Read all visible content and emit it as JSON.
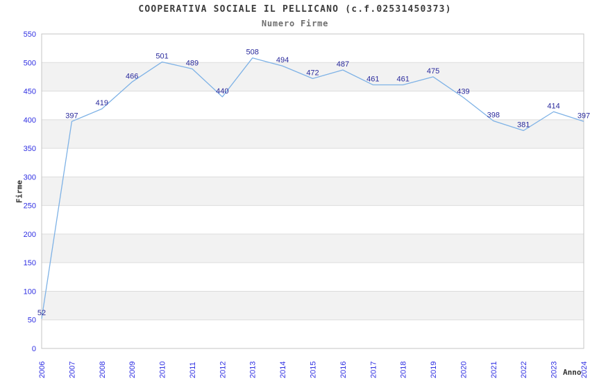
{
  "title": "COOPERATIVA SOCIALE IL PELLICANO (c.f.02531450373)",
  "subtitle": "Numero Firme",
  "chart_data": {
    "type": "line",
    "title": "COOPERATIVA SOCIALE IL PELLICANO (c.f.02531450373)",
    "subtitle": "Numero Firme",
    "xlabel": "Anno",
    "ylabel": "Firme",
    "x": [
      2006,
      2007,
      2008,
      2009,
      2010,
      2011,
      2012,
      2013,
      2014,
      2015,
      2016,
      2017,
      2018,
      2019,
      2020,
      2021,
      2022,
      2023,
      2024
    ],
    "series": [
      {
        "name": "Numero Firme",
        "values": [
          52,
          397,
          419,
          466,
          501,
          489,
          440,
          508,
          494,
          472,
          487,
          461,
          461,
          475,
          439,
          398,
          381,
          414,
          397
        ]
      }
    ],
    "ylim": [
      0,
      550
    ],
    "ytick_step": 50,
    "yticks": [
      0,
      50,
      100,
      150,
      200,
      250,
      300,
      350,
      400,
      450,
      500,
      550
    ],
    "grid": "horizontal alternating bands every 50 units",
    "legend_position": "none",
    "data_labels": "shown above each point",
    "colors": {
      "line": "#7eb2e6",
      "data_label": "#29299c",
      "tick_label": "#2e2ee2",
      "band": "#f2f2f2",
      "gridline": "#dcdcdc",
      "border": "#c4c4c4",
      "title": "#3c3c3c",
      "subtitle": "#6e6e6e",
      "axis_title": "#333333"
    }
  }
}
